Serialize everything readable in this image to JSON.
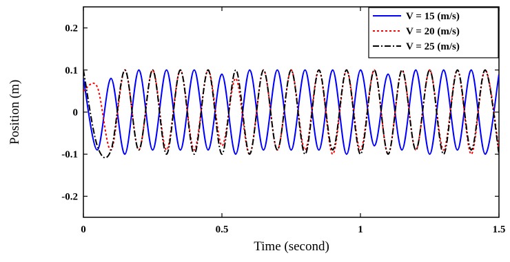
{
  "chart_data": {
    "type": "line",
    "title": "",
    "xlabel": "Time (second)",
    "ylabel": "Position (m)",
    "xlim": [
      0,
      1.5
    ],
    "ylim": [
      -0.25,
      0.25
    ],
    "xticks": [
      0,
      0.5,
      1,
      1.5
    ],
    "xtick_labels": [
      "0",
      "0.5",
      "1",
      "1.5"
    ],
    "yticks": [
      -0.2,
      -0.1,
      0,
      0.1,
      0.2
    ],
    "ytick_labels": [
      "-0.2",
      "-0.1",
      "0",
      "0.1",
      "0.2"
    ],
    "grid": false,
    "legend_position": "top-right",
    "x": [
      0,
      0.05,
      0.1,
      0.15,
      0.2,
      0.25,
      0.3,
      0.35,
      0.4,
      0.45,
      0.5,
      0.55,
      0.6,
      0.65,
      0.7,
      0.75,
      0.8,
      0.85,
      0.9,
      0.95,
      1.0,
      1.05,
      1.1,
      1.15,
      1.2,
      1.25,
      1.3,
      1.35,
      1.4,
      1.45,
      1.5
    ],
    "series": [
      {
        "name": "V = 15 (m/s)",
        "color": "#0000ff",
        "dash": "solid",
        "values": [
          0.08,
          -0.09,
          0.08,
          -0.1,
          0.1,
          -0.09,
          0.1,
          -0.09,
          0.1,
          -0.09,
          0.09,
          -0.1,
          0.1,
          -0.09,
          0.1,
          -0.09,
          0.1,
          -0.09,
          0.1,
          -0.1,
          0.1,
          -0.08,
          0.09,
          -0.09,
          0.1,
          -0.1,
          0.1,
          -0.09,
          0.1,
          -0.1,
          0.09
        ]
      },
      {
        "name": "V = 20 (m/s)",
        "color": "#ff0000",
        "dash": "dotted",
        "values": [
          0.05,
          0.06,
          -0.09,
          0.1,
          -0.09,
          0.1,
          -0.09,
          0.1,
          -0.09,
          0.1,
          -0.08,
          0.08,
          -0.1,
          0.1,
          -0.09,
          0.1,
          -0.09,
          0.1,
          -0.1,
          0.1,
          -0.09,
          0.1,
          -0.1,
          0.1,
          -0.09,
          0.1,
          -0.09,
          0.1,
          -0.1,
          0.1,
          -0.09
        ]
      },
      {
        "name": "V = 25 (m/s)",
        "color": "#000000",
        "dash": "dashdot",
        "values": [
          0.1,
          -0.08,
          -0.09,
          0.1,
          -0.09,
          0.1,
          -0.1,
          0.1,
          -0.1,
          0.1,
          -0.1,
          0.1,
          -0.1,
          0.1,
          -0.09,
          0.1,
          -0.1,
          0.1,
          -0.09,
          0.1,
          -0.1,
          0.1,
          -0.1,
          0.1,
          -0.09,
          0.1,
          -0.1,
          0.1,
          -0.09,
          0.1,
          -0.1
        ]
      }
    ]
  }
}
